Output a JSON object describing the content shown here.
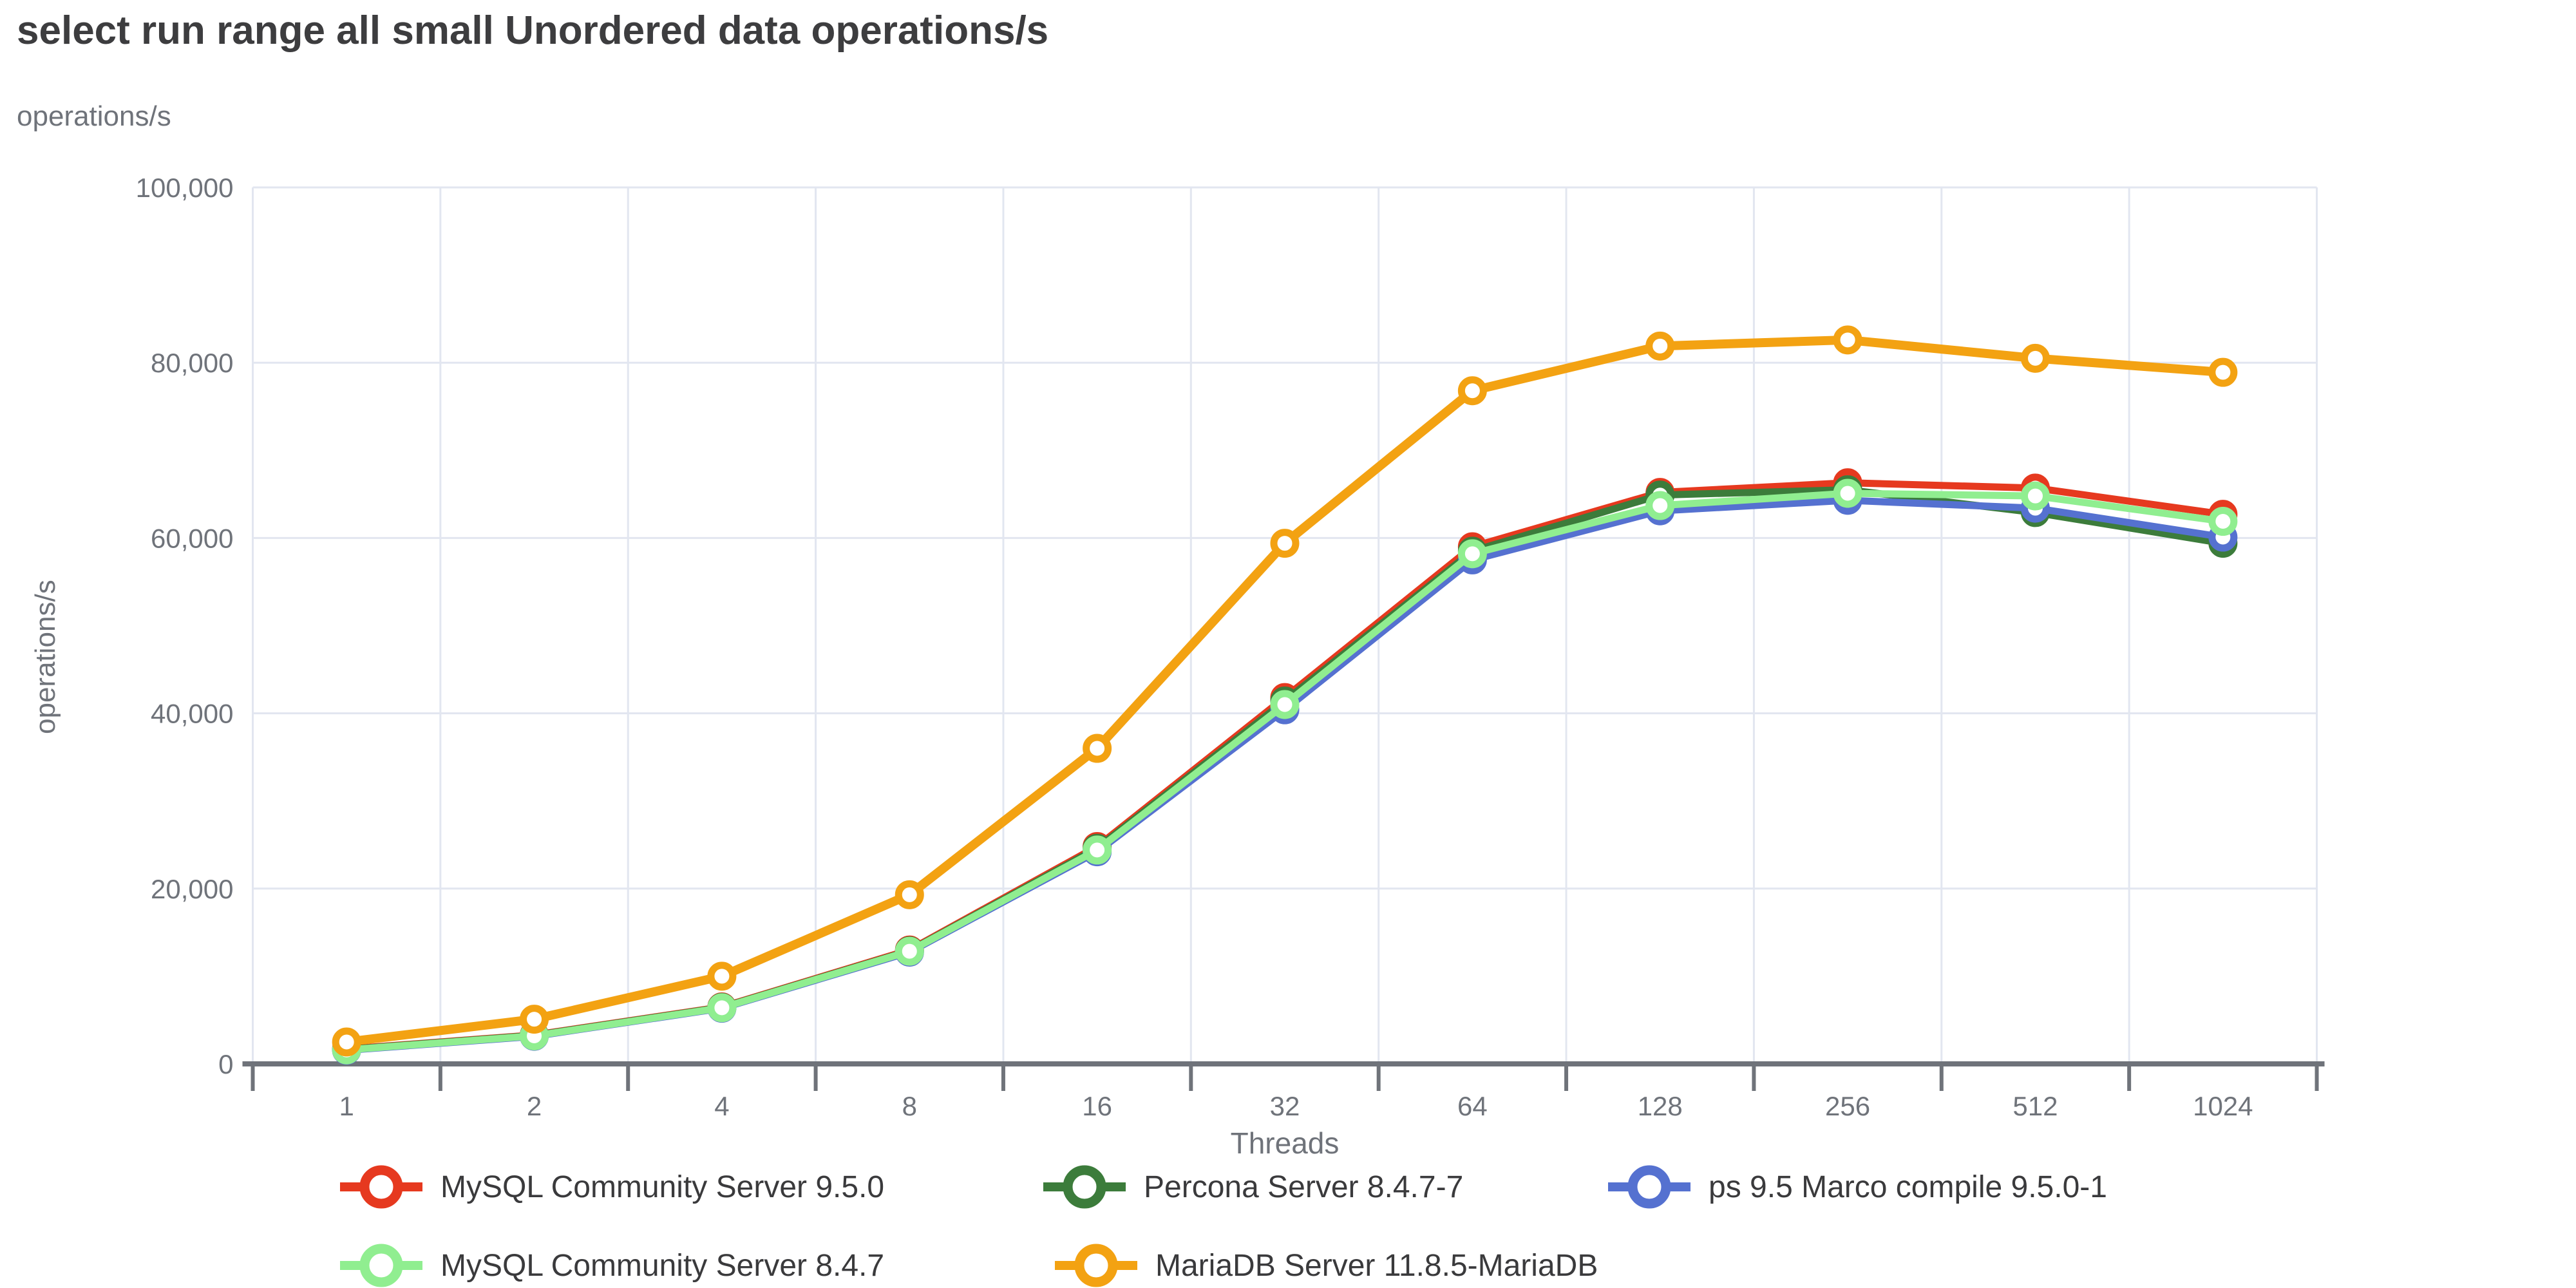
{
  "title": "select run range all small Unordered data operations/s",
  "chart_data": {
    "type": "line",
    "title": "select run range all small Unordered data operations/s",
    "xlabel": "Threads",
    "ylabel": "operations/s",
    "x_categories": [
      "1",
      "2",
      "4",
      "8",
      "16",
      "32",
      "64",
      "128",
      "256",
      "512",
      "1024"
    ],
    "ylim": [
      0,
      100000
    ],
    "y_ticks": [
      0,
      20000,
      40000,
      60000,
      80000,
      100000
    ],
    "y_tick_labels": [
      "0",
      "20,000",
      "40,000",
      "60,000",
      "80,000",
      "100,000"
    ],
    "grid": true,
    "legend_position": "bottom",
    "marker_style": "open-circle",
    "series": [
      {
        "name": "MySQL Community Server 9.5.0",
        "color": "#e6391f",
        "width": 11,
        "values": [
          1700,
          3300,
          6500,
          13000,
          24800,
          41800,
          59000,
          65200,
          66300,
          65700,
          62700
        ]
      },
      {
        "name": "Percona Server 8.4.7-7",
        "color": "#3c7c3b",
        "width": 11,
        "values": [
          1650,
          3250,
          6450,
          12900,
          24600,
          41400,
          58500,
          64900,
          65500,
          62900,
          59400
        ]
      },
      {
        "name": "ps 9.5 Marco compile 9.5.0-1",
        "color": "#5571d0",
        "width": 11,
        "values": [
          1550,
          3150,
          6350,
          12750,
          24200,
          40400,
          57500,
          63100,
          64300,
          63400,
          60100
        ]
      },
      {
        "name": "MySQL Community Server 8.4.7",
        "color": "#90ee90",
        "width": 11,
        "values": [
          1600,
          3200,
          6400,
          12850,
          24400,
          41000,
          58200,
          63700,
          65100,
          64800,
          61900
        ]
      },
      {
        "name": "MariaDB Server 11.8.5-MariaDB",
        "color": "#f3a212",
        "width": 14,
        "values": [
          2500,
          5100,
          10000,
          19300,
          36000,
          59400,
          76800,
          81900,
          82600,
          80500,
          78900
        ]
      }
    ]
  },
  "colors": {
    "grid": "#e2e6f0",
    "axis": "#6f737a",
    "tick_text": "#6f737a",
    "title_text": "#3d3d3f",
    "legend_text": "#3a3a3c",
    "background": "#ffffff"
  }
}
